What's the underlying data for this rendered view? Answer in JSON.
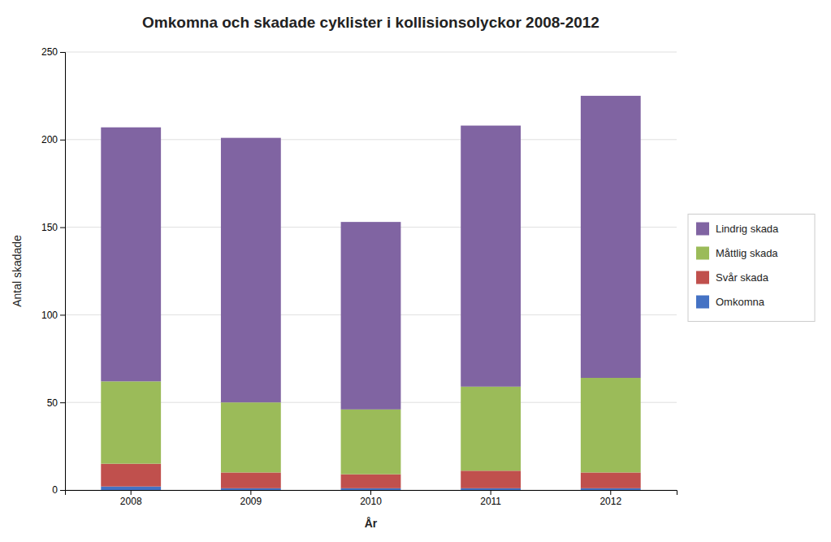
{
  "chart_data": {
    "type": "bar",
    "stacked": true,
    "title": "Omkomna och skadade cyklister i kollisionsolyckor 2008-2012",
    "xlabel": "År",
    "ylabel": "Antal skadade",
    "categories": [
      "2008",
      "2009",
      "2010",
      "2011",
      "2012"
    ],
    "series": [
      {
        "name": "Omkomna",
        "color": "#4472C4",
        "values": [
          2,
          1,
          1,
          1,
          1
        ]
      },
      {
        "name": "Svår skada",
        "color": "#C0504D",
        "values": [
          13,
          9,
          8,
          10,
          9
        ]
      },
      {
        "name": "Måttlig skada",
        "color": "#9BBB59",
        "values": [
          47,
          40,
          37,
          48,
          54
        ]
      },
      {
        "name": "Lindrig skada",
        "color": "#8064A2",
        "values": [
          145,
          151,
          107,
          149,
          161
        ]
      }
    ],
    "ylim": [
      0,
      250
    ],
    "yticks": [
      0,
      50,
      100,
      150,
      200,
      250
    ],
    "grid": true,
    "legend": "right"
  }
}
